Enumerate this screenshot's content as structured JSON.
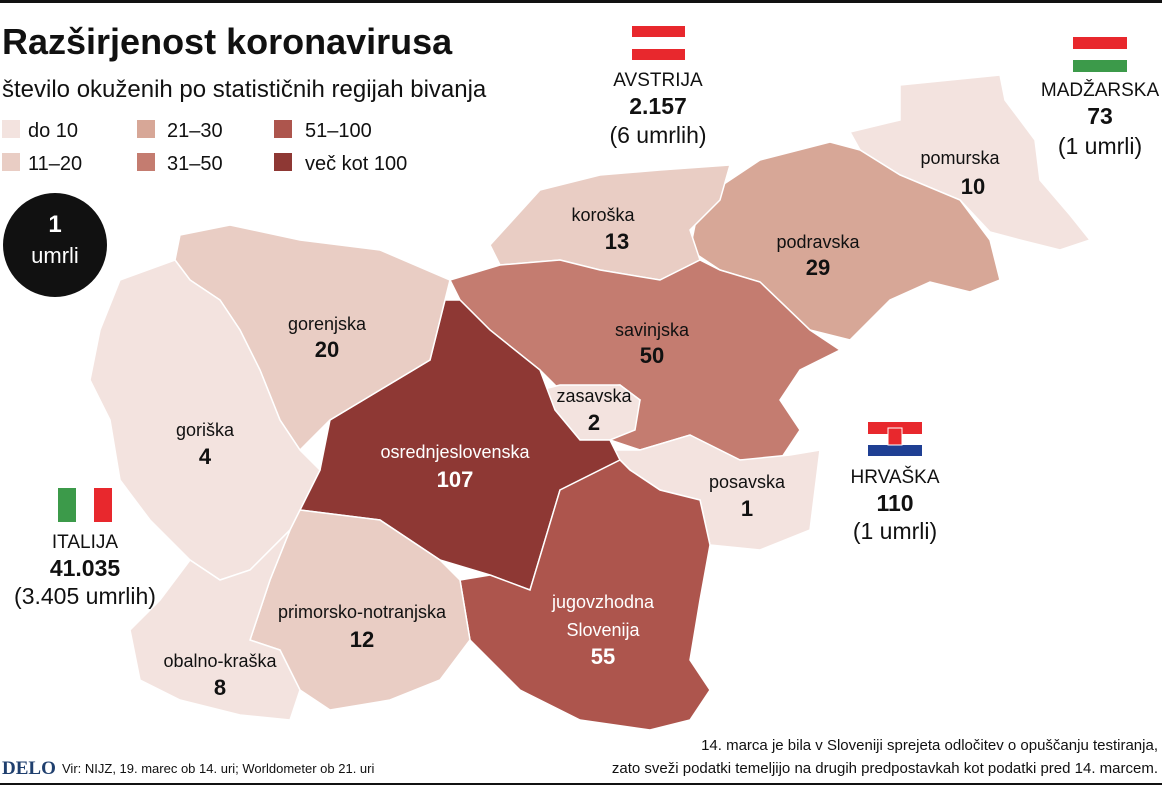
{
  "header": {
    "title": "Razširjenost koronavirusa",
    "subtitle": "število okuženih po statističnih regijah bivanja"
  },
  "legend": [
    {
      "label": "do 10",
      "color": "#f3e3df"
    },
    {
      "label": "11–20",
      "color": "#e9cdc4"
    },
    {
      "label": "21–30",
      "color": "#d7a797"
    },
    {
      "label": "31–50",
      "color": "#c47c70"
    },
    {
      "label": "51–100",
      "color": "#ad554d"
    },
    {
      "label": "več kot 100",
      "color": "#8e3834"
    }
  ],
  "death_marker": {
    "count": "1",
    "label": "umrli"
  },
  "regions": [
    {
      "name": "pomurska",
      "cases": 10,
      "color": "#f3e3df"
    },
    {
      "name": "podravska",
      "cases": 29,
      "color": "#d7a797"
    },
    {
      "name": "koroška",
      "cases": 13,
      "color": "#e9cdc4"
    },
    {
      "name": "savinjska",
      "cases": 50,
      "color": "#c47c70"
    },
    {
      "name": "zasavska",
      "cases": 2,
      "color": "#f3e3df"
    },
    {
      "name": "posavska",
      "cases": 1,
      "color": "#f3e3df"
    },
    {
      "name": "osrednjeslovenska",
      "cases": 107,
      "color": "#8e3834"
    },
    {
      "name": [
        "jugovzhodna",
        "Slovenija"
      ],
      "cases": 55,
      "color": "#ad554d"
    },
    {
      "name": "gorenjska",
      "cases": 20,
      "color": "#e9cdc4"
    },
    {
      "name": "goriška",
      "cases": 4,
      "color": "#f3e3df"
    },
    {
      "name": "primorsko-notranjska",
      "cases": 12,
      "color": "#e9cdc4"
    },
    {
      "name": "obalno-kraška",
      "cases": 8,
      "color": "#f3e3df"
    }
  ],
  "countries": [
    {
      "name": "AVSTRIJA",
      "cases": "2.157",
      "deaths": "(6 umrlih)"
    },
    {
      "name": "MADŽARSKA",
      "cases": "73",
      "deaths": "(1 umrli)"
    },
    {
      "name": "HRVAŠKA",
      "cases": "110",
      "deaths": "(1 umrli)"
    },
    {
      "name": "ITALIJA",
      "cases": "41.035",
      "deaths": "(3.405 umrlih)"
    }
  ],
  "footer": {
    "logo": "DELO",
    "source": "Vir: NIJZ, 19. marec ob 14. uri; Worldometer ob 21. uri",
    "note": [
      "14. marca je bila v Sloveniji sprejeta odločitev o opuščanju testiranja,",
      "zato sveži podatki temeljijo na drugih predpostavkah kot podatki pred 14. marcem."
    ]
  }
}
